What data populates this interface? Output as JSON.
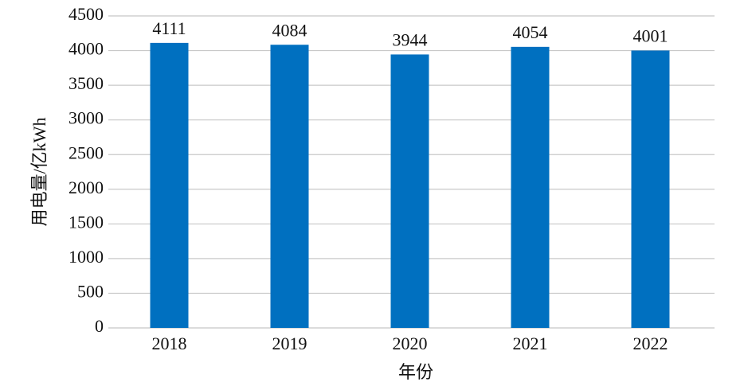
{
  "chart_data": {
    "type": "bar",
    "x_label": "年份",
    "y_label": "用电量/亿kWh",
    "categories": [
      "2018",
      "2019",
      "2020",
      "2021",
      "2022"
    ],
    "values": [
      4111,
      4084,
      3944,
      4054,
      4001
    ],
    "color": "#0070c0",
    "ylim": [
      0,
      4500
    ],
    "yticks": [
      0,
      500,
      1000,
      1500,
      2000,
      2500,
      3000,
      3500,
      4000,
      4500
    ],
    "grid": true
  }
}
